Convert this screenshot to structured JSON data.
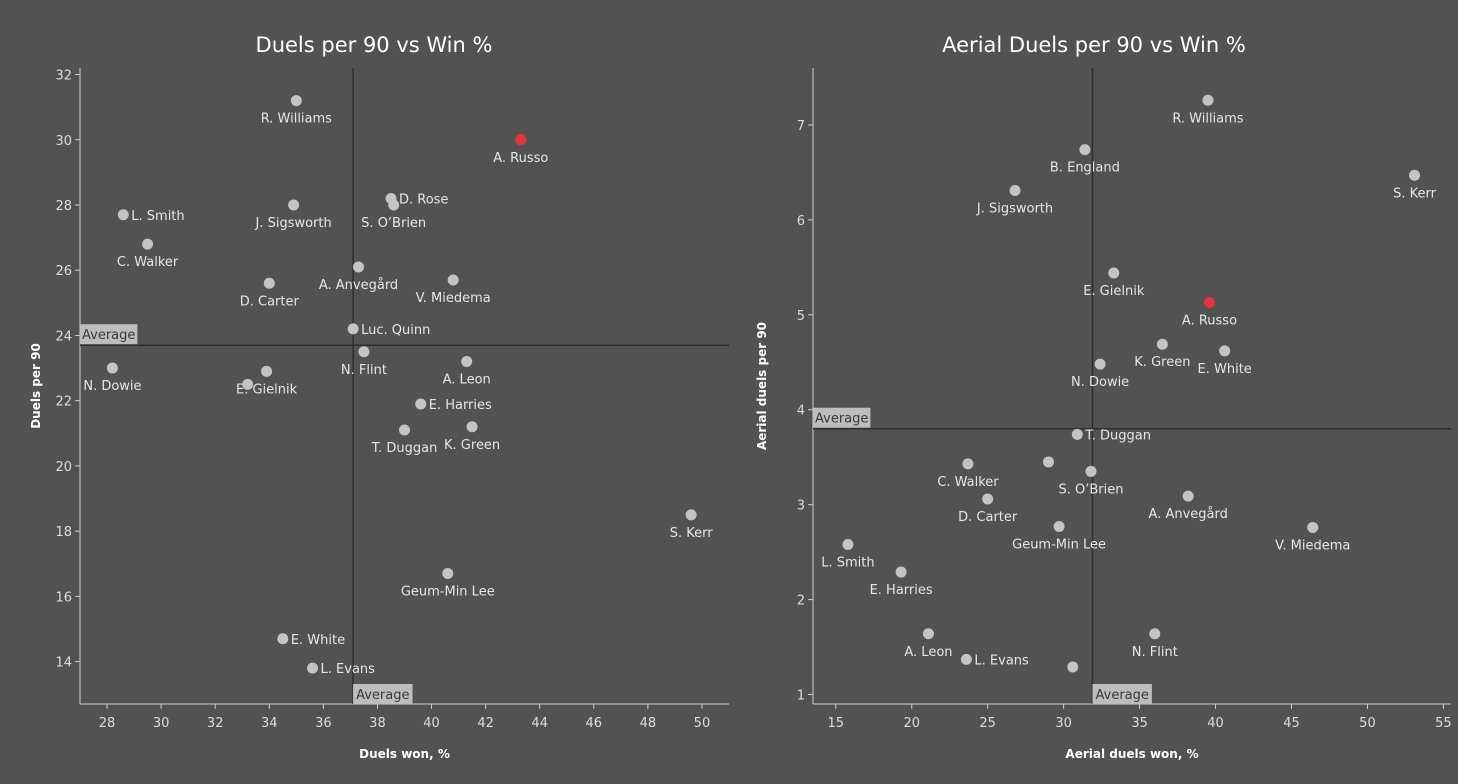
{
  "colors": {
    "background": "#525252",
    "point": "#c4c4c4",
    "highlight": "#e8333b",
    "axis": "#d0d0d0",
    "average_line": "#2e2e2e",
    "average_box": "#bdbdbd"
  },
  "chart_data": [
    {
      "type": "scatter",
      "title": "Duels per 90 vs Win %",
      "xlabel": "Duels won, %",
      "ylabel": "Duels per 90",
      "xlim": [
        27,
        51
      ],
      "ylim": [
        12.7,
        32.2
      ],
      "xticks": [
        28,
        30,
        32,
        34,
        36,
        38,
        40,
        42,
        44,
        46,
        48,
        50
      ],
      "yticks": [
        14,
        16,
        18,
        20,
        22,
        24,
        26,
        28,
        30,
        32
      ],
      "grid": false,
      "reference_lines": {
        "x": 37.1,
        "y": 23.7,
        "label": "Average"
      },
      "points": [
        {
          "label": "R. Williams",
          "x": 35.0,
          "y": 31.2,
          "label_pos": "below"
        },
        {
          "label": "A. Russo",
          "x": 43.3,
          "y": 30.0,
          "label_pos": "below",
          "highlight": true
        },
        {
          "label": "L. Smith",
          "x": 28.6,
          "y": 27.7,
          "label_pos": "right"
        },
        {
          "label": "J. Sigsworth",
          "x": 34.9,
          "y": 28.0,
          "label_pos": "below"
        },
        {
          "label": "D. Rose",
          "x": 38.5,
          "y": 28.2,
          "label_pos": "right"
        },
        {
          "label": "S. O’Brien",
          "x": 38.6,
          "y": 28.0,
          "label_pos": "below"
        },
        {
          "label": "C. Walker",
          "x": 29.5,
          "y": 26.8,
          "label_pos": "below"
        },
        {
          "label": "D. Carter",
          "x": 34.0,
          "y": 25.6,
          "label_pos": "below"
        },
        {
          "label": "A. Anvegård",
          "x": 37.3,
          "y": 26.1,
          "label_pos": "below"
        },
        {
          "label": "V. Miedema",
          "x": 40.8,
          "y": 25.7,
          "label_pos": "below"
        },
        {
          "label": "Luc. Quinn",
          "x": 37.1,
          "y": 24.2,
          "label_pos": "right"
        },
        {
          "label": "N. Flint",
          "x": 37.5,
          "y": 23.5,
          "label_pos": "below"
        },
        {
          "label": "N. Dowie",
          "x": 28.2,
          "y": 23.0,
          "label_pos": "below"
        },
        {
          "label": "A. Leon",
          "x": 41.3,
          "y": 23.2,
          "label_pos": "below"
        },
        {
          "label": "E. Gielnik",
          "x": 33.9,
          "y": 22.9,
          "label_pos": "below"
        },
        {
          "label": "",
          "x": 33.2,
          "y": 22.5,
          "label_pos": "none"
        },
        {
          "label": "E. Harries",
          "x": 39.6,
          "y": 21.9,
          "label_pos": "right"
        },
        {
          "label": "T. Duggan",
          "x": 39.0,
          "y": 21.1,
          "label_pos": "below"
        },
        {
          "label": "K. Green",
          "x": 41.5,
          "y": 21.2,
          "label_pos": "below"
        },
        {
          "label": "S. Kerr",
          "x": 49.6,
          "y": 18.5,
          "label_pos": "below"
        },
        {
          "label": "Geum-Min Lee",
          "x": 40.6,
          "y": 16.7,
          "label_pos": "below"
        },
        {
          "label": "E. White",
          "x": 34.5,
          "y": 14.7,
          "label_pos": "right"
        },
        {
          "label": "L. Evans",
          "x": 35.6,
          "y": 13.8,
          "label_pos": "right"
        }
      ]
    },
    {
      "type": "scatter",
      "title": "Aerial Duels per 90 vs Win %",
      "xlabel": "Aerial duels won, %",
      "ylabel": "Aerial duels per 90",
      "xlim": [
        13.5,
        55.5
      ],
      "ylim": [
        0.9,
        7.6
      ],
      "xticks": [
        15,
        20,
        25,
        30,
        35,
        40,
        45,
        50,
        55
      ],
      "yticks": [
        1,
        2,
        3,
        4,
        5,
        6,
        7
      ],
      "grid": false,
      "reference_lines": {
        "x": 31.9,
        "y": 3.8,
        "label": "Average"
      },
      "points": [
        {
          "label": "R. Williams",
          "x": 39.5,
          "y": 7.26,
          "label_pos": "below"
        },
        {
          "label": "B. England",
          "x": 31.4,
          "y": 6.74,
          "label_pos": "below"
        },
        {
          "label": "S. Kerr",
          "x": 53.1,
          "y": 6.47,
          "label_pos": "below"
        },
        {
          "label": "J. Sigsworth",
          "x": 26.8,
          "y": 6.31,
          "label_pos": "below"
        },
        {
          "label": "E. Gielnik",
          "x": 33.3,
          "y": 5.44,
          "label_pos": "below"
        },
        {
          "label": "A. Russo",
          "x": 39.6,
          "y": 5.13,
          "label_pos": "below",
          "highlight": true
        },
        {
          "label": "K. Green",
          "x": 36.5,
          "y": 4.69,
          "label_pos": "below"
        },
        {
          "label": "E. White",
          "x": 40.6,
          "y": 4.62,
          "label_pos": "below"
        },
        {
          "label": "N. Dowie",
          "x": 32.4,
          "y": 4.48,
          "label_pos": "below"
        },
        {
          "label": "T. Duggan",
          "x": 30.9,
          "y": 3.74,
          "label_pos": "right"
        },
        {
          "label": "C. Walker",
          "x": 23.7,
          "y": 3.43,
          "label_pos": "below"
        },
        {
          "label": "",
          "x": 29.0,
          "y": 3.45,
          "label_pos": "none"
        },
        {
          "label": "S. O’Brien",
          "x": 31.8,
          "y": 3.35,
          "label_pos": "below"
        },
        {
          "label": "A. Anvegård",
          "x": 38.2,
          "y": 3.09,
          "label_pos": "below"
        },
        {
          "label": "D. Carter",
          "x": 25.0,
          "y": 3.06,
          "label_pos": "below"
        },
        {
          "label": "Geum-Min Lee",
          "x": 29.7,
          "y": 2.77,
          "label_pos": "below"
        },
        {
          "label": "V. Miedema",
          "x": 46.4,
          "y": 2.76,
          "label_pos": "below"
        },
        {
          "label": "L. Smith",
          "x": 15.8,
          "y": 2.58,
          "label_pos": "below"
        },
        {
          "label": "E. Harries",
          "x": 19.3,
          "y": 2.29,
          "label_pos": "below"
        },
        {
          "label": "A. Leon",
          "x": 21.1,
          "y": 1.64,
          "label_pos": "below"
        },
        {
          "label": "N. Flint",
          "x": 36.0,
          "y": 1.64,
          "label_pos": "below"
        },
        {
          "label": "L. Evans",
          "x": 23.6,
          "y": 1.37,
          "label_pos": "right"
        },
        {
          "label": "",
          "x": 30.6,
          "y": 1.29,
          "label_pos": "none"
        }
      ]
    }
  ]
}
